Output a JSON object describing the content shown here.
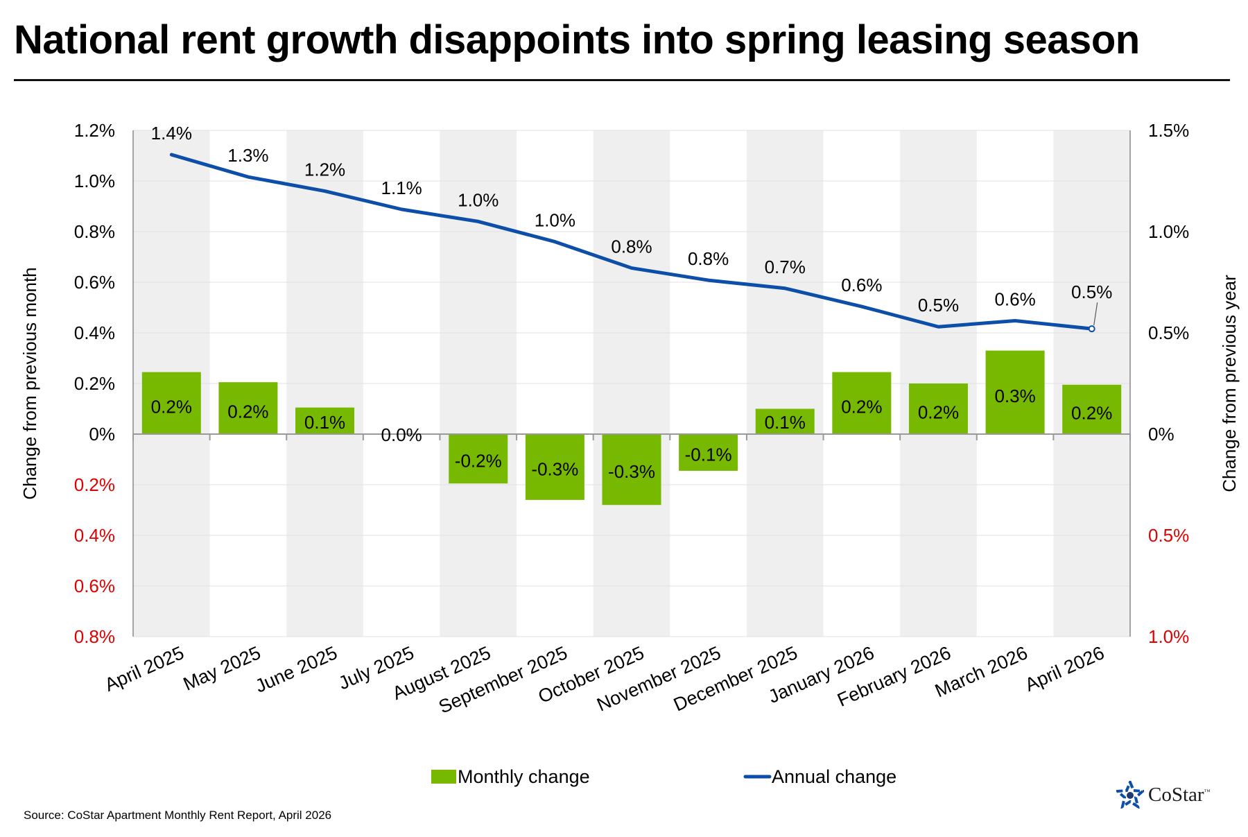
{
  "title": "National rent growth disappoints into spring leasing season",
  "source": "Source: CoStar Apartment Monthly Rent Report, April 2026",
  "logo": {
    "text": "CoStar",
    "tm": "™"
  },
  "colors": {
    "bar": "#76b900",
    "line": "#0d4fa8",
    "negative_tick": "#e00000",
    "band": "#efefef"
  },
  "chart_data": {
    "type": "bar+line",
    "categories": [
      "April 2025",
      "May 2025",
      "June 2025",
      "July 2025",
      "August 2025",
      "September 2025",
      "October 2025",
      "November 2025",
      "December 2025",
      "January 2026",
      "February 2026",
      "March 2026",
      "April 2026"
    ],
    "series": [
      {
        "name": "Monthly change",
        "type": "bar",
        "axis": "left",
        "values": [
          0.245,
          0.205,
          0.105,
          0.0,
          -0.195,
          -0.26,
          -0.28,
          -0.145,
          0.1,
          0.245,
          0.2,
          0.33,
          0.195
        ],
        "labels": [
          "0.2%",
          "0.2%",
          "0.1%",
          "0.0%",
          "-0.2%",
          "-0.3%",
          "-0.3%",
          "-0.1%",
          "0.1%",
          "0.2%",
          "0.2%",
          "0.3%",
          "0.2%"
        ]
      },
      {
        "name": "Annual change",
        "type": "line",
        "axis": "right",
        "values": [
          1.38,
          1.27,
          1.2,
          1.11,
          1.05,
          0.95,
          0.82,
          0.76,
          0.72,
          0.63,
          0.53,
          0.56,
          0.52
        ],
        "labels": [
          "1.4%",
          "1.3%",
          "1.2%",
          "1.1%",
          "1.0%",
          "1.0%",
          "0.8%",
          "0.8%",
          "0.7%",
          "0.6%",
          "0.5%",
          "0.6%",
          "0.5%"
        ]
      }
    ],
    "left_axis": {
      "label": "Change from previous month",
      "range": [
        -0.8,
        1.2
      ],
      "ticks": [
        {
          "value": 1.2,
          "label": "1.2%",
          "negative": false
        },
        {
          "value": 1.0,
          "label": "1.0%",
          "negative": false
        },
        {
          "value": 0.8,
          "label": "0.8%",
          "negative": false
        },
        {
          "value": 0.6,
          "label": "0.6%",
          "negative": false
        },
        {
          "value": 0.4,
          "label": "0.4%",
          "negative": false
        },
        {
          "value": 0.2,
          "label": "0.2%",
          "negative": false
        },
        {
          "value": 0.0,
          "label": "0%",
          "negative": false
        },
        {
          "value": -0.2,
          "label": "0.2%",
          "negative": true
        },
        {
          "value": -0.4,
          "label": "0.4%",
          "negative": true
        },
        {
          "value": -0.6,
          "label": "0.6%",
          "negative": true
        },
        {
          "value": -0.8,
          "label": "0.8%",
          "negative": true
        }
      ]
    },
    "right_axis": {
      "label": "Change from previous year",
      "range": [
        -1.0,
        1.5
      ],
      "ticks": [
        {
          "value": 1.5,
          "label": "1.5%",
          "negative": false
        },
        {
          "value": 1.0,
          "label": "1.0%",
          "negative": false
        },
        {
          "value": 0.5,
          "label": "0.5%",
          "negative": false
        },
        {
          "value": 0.0,
          "label": "0%",
          "negative": false
        },
        {
          "value": -0.5,
          "label": "0.5%",
          "negative": true
        },
        {
          "value": -1.0,
          "label": "1.0%",
          "negative": true
        }
      ]
    },
    "legend": {
      "position": "bottom-center",
      "items": [
        {
          "name": "Monthly change",
          "kind": "bar"
        },
        {
          "name": "Annual change",
          "kind": "line"
        }
      ]
    },
    "gridlines": true,
    "alternating_bands": true
  }
}
